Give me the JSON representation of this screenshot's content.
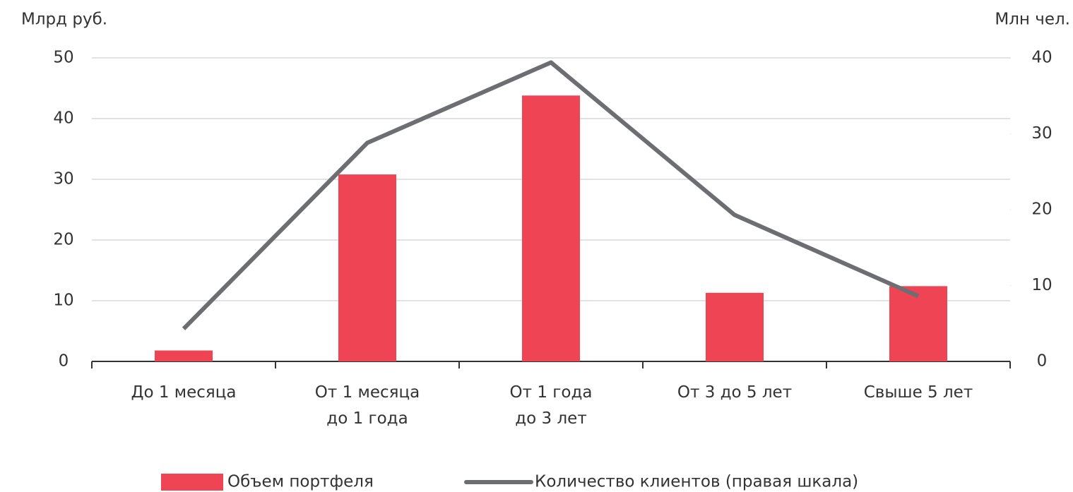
{
  "chart_data": {
    "type": "bar-line",
    "y_label": "Млрд руб.",
    "y2_label": "Млн чел.",
    "categories": [
      "До 1 месяца",
      "От 1 месяца\nдо 1 года",
      "От 1 года\nдо 3 лет",
      "От 3 до 5 лет",
      "Свыше 5 лет"
    ],
    "series": [
      {
        "name": "Объем портфеля",
        "type": "bar",
        "color": "#ee4454",
        "values": [
          1.8,
          30.8,
          43.8,
          11.3,
          12.4
        ]
      },
      {
        "name": "Количество клиентов (правая шкала)",
        "type": "line",
        "axis": "y2",
        "color": "#6d6e71",
        "values": [
          4.3,
          28.8,
          39.4,
          19.3,
          8.6
        ]
      }
    ],
    "ylim": [
      0,
      50
    ],
    "yticks": [
      0,
      10,
      20,
      30,
      40,
      50
    ],
    "y2lim": [
      0,
      40
    ],
    "y2ticks": [
      0,
      10,
      20,
      30,
      40
    ],
    "grid": true,
    "legend": "bottom"
  }
}
